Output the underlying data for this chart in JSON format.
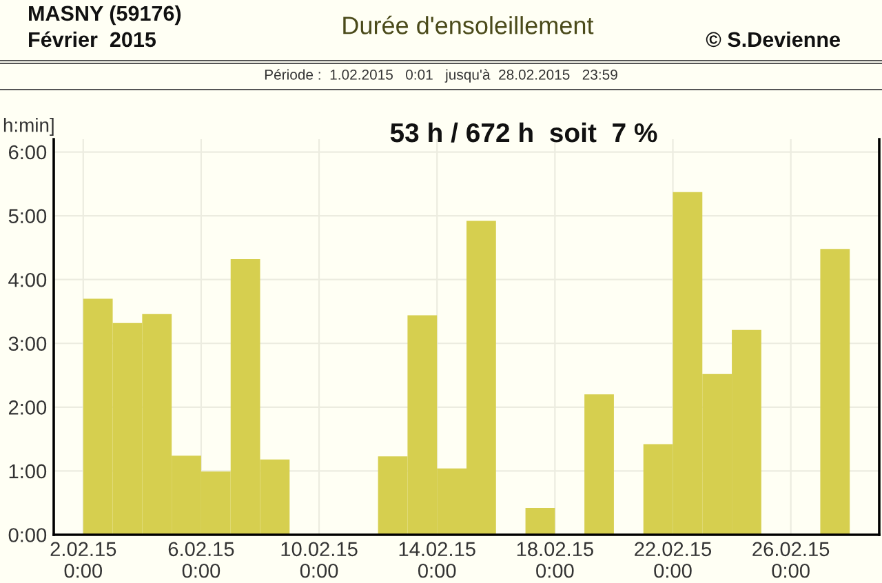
{
  "chart_data": {
    "type": "bar",
    "title": "Durée d'ensoleillement",
    "subtitle": "Période :  1.02.2015   0:01   jusqu'à  28.02.2015   23:59",
    "ylabel": "h:min]",
    "annotations": [
      "MASNY (59176)",
      "Février  2015",
      "© S.Devienne",
      "53 h / 672 h  soit  7 %"
    ],
    "x": [
      "2015-02-01T12:00",
      "2015-02-02T12:00",
      "2015-02-03T12:00",
      "2015-02-04T12:00",
      "2015-02-05T12:00",
      "2015-02-06T12:00",
      "2015-02-07T12:00",
      "2015-02-08T12:00",
      "2015-02-09T12:00",
      "2015-02-10T12:00",
      "2015-02-11T12:00",
      "2015-02-12T12:00",
      "2015-02-13T12:00",
      "2015-02-14T12:00",
      "2015-02-15T12:00",
      "2015-02-16T12:00",
      "2015-02-17T12:00",
      "2015-02-18T12:00",
      "2015-02-19T12:00",
      "2015-02-20T12:00",
      "2015-02-21T12:00",
      "2015-02-22T12:00",
      "2015-02-23T12:00",
      "2015-02-24T12:00",
      "2015-02-25T12:00",
      "2015-02-26T12:00",
      "2015-02-27T12:00",
      "2015-02-28T12:00"
    ],
    "values": [
      0,
      3.7,
      3.32,
      3.46,
      1.24,
      0.99,
      4.32,
      1.18,
      0,
      0,
      0,
      1.23,
      3.44,
      1.04,
      4.92,
      0,
      0.42,
      0,
      2.2,
      0,
      1.42,
      5.37,
      2.52,
      3.21,
      0,
      0,
      4.48,
      0
    ],
    "color": "#d6cf4f",
    "xlim": [
      "2015-02-01",
      "2015-03-01"
    ],
    "xticks": [
      {
        "value": "2015-02-02",
        "label": "2.02.15\n0:00"
      },
      {
        "value": "2015-02-06",
        "label": "6.02.15\n0:00"
      },
      {
        "value": "2015-02-10",
        "label": "10.02.15\n0:00"
      },
      {
        "value": "2015-02-14",
        "label": "14.02.15\n0:00"
      },
      {
        "value": "2015-02-18",
        "label": "18.02.15\n0:00"
      },
      {
        "value": "2015-02-22",
        "label": "22.02.15\n0:00"
      },
      {
        "value": "2015-02-26",
        "label": "26.02.15\n0:00"
      }
    ],
    "ylim": [
      0,
      6.2
    ],
    "yticks": [
      {
        "value": 0,
        "label": "0:00"
      },
      {
        "value": 1,
        "label": "1:00"
      },
      {
        "value": 2,
        "label": "2:00"
      },
      {
        "value": 3,
        "label": "3:00"
      },
      {
        "value": 4,
        "label": "4:00"
      },
      {
        "value": 5,
        "label": "5:00"
      },
      {
        "value": 6,
        "label": "6:00"
      }
    ],
    "grid": true
  }
}
